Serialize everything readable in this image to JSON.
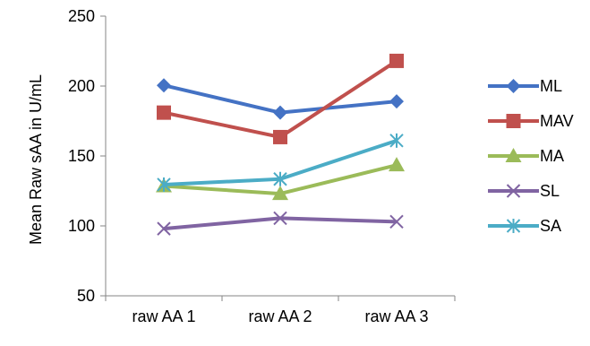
{
  "chart_data": {
    "type": "line",
    "title": "",
    "xlabel": "",
    "ylabel": "Mean Raw sAA in U/mL",
    "categories": [
      "raw AA 1",
      "raw AA 2",
      "raw AA 3"
    ],
    "ylim": [
      50,
      250
    ],
    "yticks": [
      50,
      100,
      150,
      200,
      250
    ],
    "grid": false,
    "legend_position": "right",
    "series": [
      {
        "name": "ML",
        "values": [
          200.5,
          181,
          189
        ],
        "color": "#4472C4",
        "marker": "diamond"
      },
      {
        "name": "MAV",
        "values": [
          181,
          163.5,
          218
        ],
        "color": "#C0504D",
        "marker": "square"
      },
      {
        "name": "MA",
        "values": [
          128.5,
          123,
          143.5
        ],
        "color": "#9BBB59",
        "marker": "triangle"
      },
      {
        "name": "SL",
        "values": [
          98,
          105.5,
          103
        ],
        "color": "#8064A2",
        "marker": "x"
      },
      {
        "name": "SA",
        "values": [
          129.5,
          133.5,
          161
        ],
        "color": "#4BACC6",
        "marker": "star"
      }
    ]
  }
}
